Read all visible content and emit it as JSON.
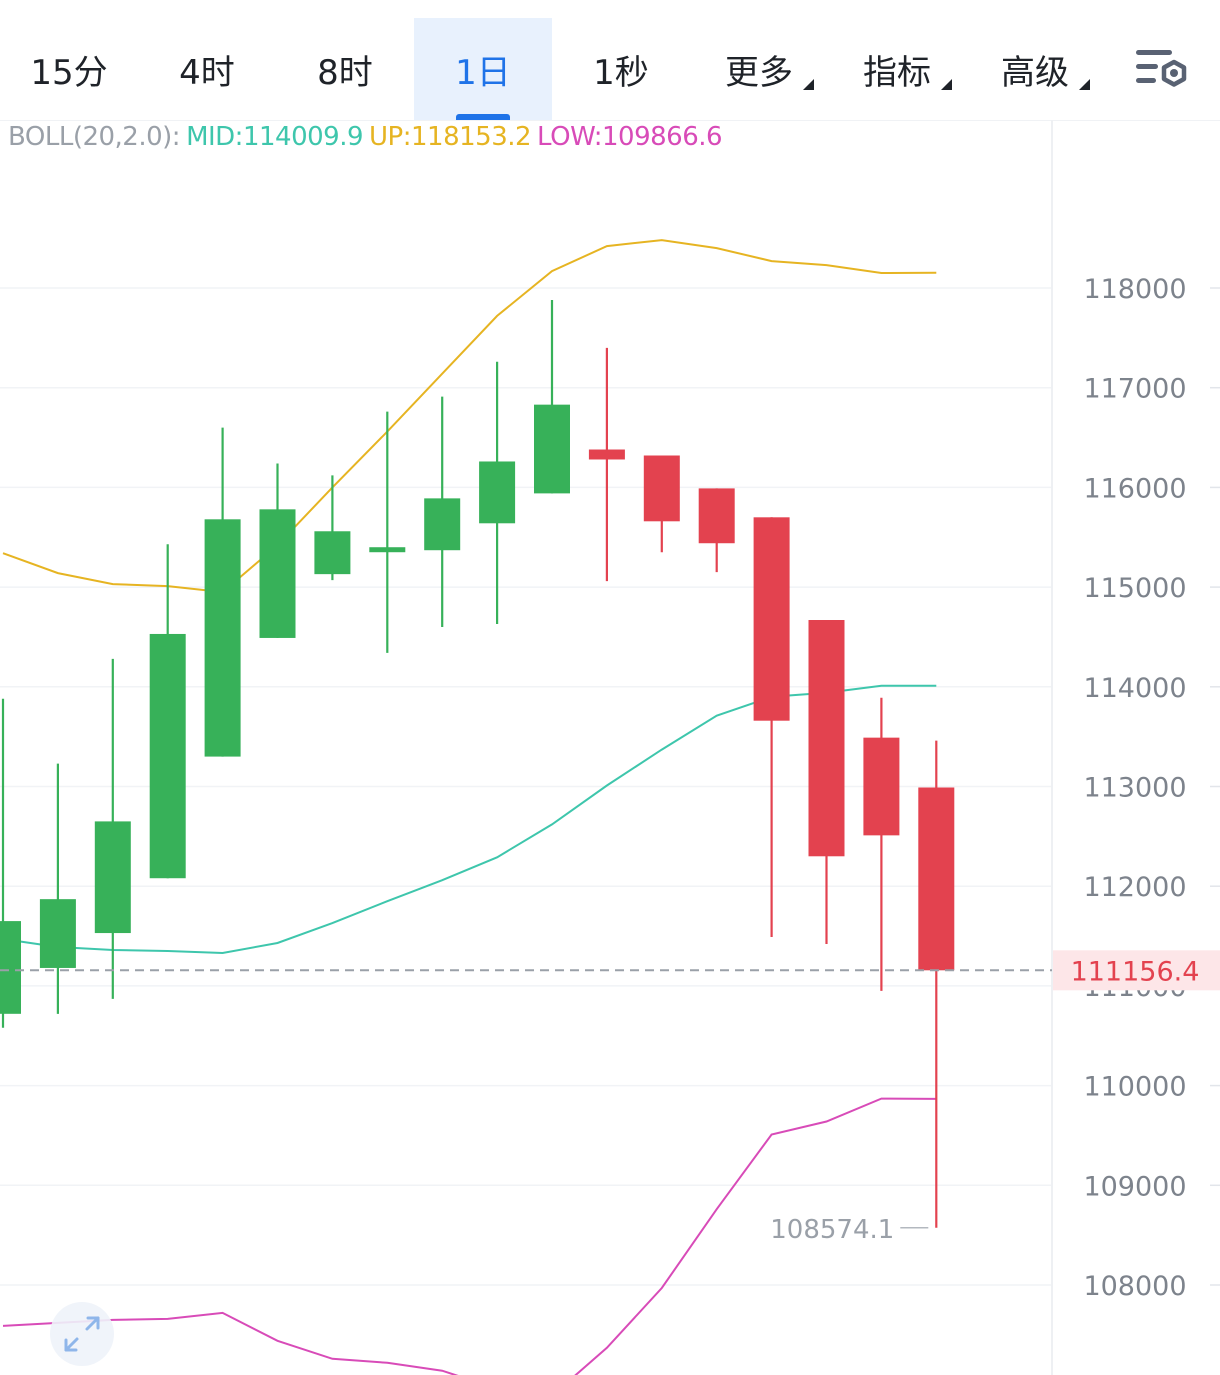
{
  "tabs": [
    {
      "label": "15分",
      "active": false,
      "dropdown": false
    },
    {
      "label": "4时",
      "active": false,
      "dropdown": false
    },
    {
      "label": "8时",
      "active": false,
      "dropdown": false
    },
    {
      "label": "1日",
      "active": true,
      "dropdown": false
    },
    {
      "label": "1秒",
      "active": false,
      "dropdown": false
    },
    {
      "label": "更多",
      "active": false,
      "dropdown": true
    },
    {
      "label": "指标",
      "active": false,
      "dropdown": true
    },
    {
      "label": "高级",
      "active": false,
      "dropdown": true
    }
  ],
  "icons": {
    "settings": "chart-settings-icon",
    "fullscreen": "expand-arrows-icon"
  },
  "legend": {
    "name": "BOLL(20,2.0):",
    "mid": "MID:114009.9",
    "up": "UP:118153.2",
    "low": "LOW:109866.6"
  },
  "colors": {
    "up": "#37b159",
    "down": "#e3424f",
    "mid": "#3ec6ac",
    "upper": "#e6b422",
    "lower": "#d84bb8",
    "accent": "#1f73e8",
    "price_label": "#e3424f"
  },
  "chart_data": {
    "type": "candlestick",
    "title": "",
    "y_axis": {
      "ticks": [
        118000,
        117000,
        116000,
        115000,
        114000,
        113000,
        112000,
        111000,
        110000,
        109000,
        108000
      ],
      "range": [
        107000,
        119700
      ],
      "position": "right"
    },
    "last_price": 111156.4,
    "high_marker": 117875.2,
    "low_marker": 108574.1,
    "candles": [
      {
        "open": 110720,
        "close": 111650,
        "high": 113880,
        "low": 110580
      },
      {
        "open": 111180,
        "close": 111870,
        "high": 113230,
        "low": 110720
      },
      {
        "open": 111530,
        "close": 112650,
        "high": 114280,
        "low": 110870
      },
      {
        "open": 112080,
        "close": 114530,
        "high": 115430,
        "low": 112080
      },
      {
        "open": 113300,
        "close": 115680,
        "high": 116600,
        "low": 113300
      },
      {
        "open": 114490,
        "close": 115780,
        "high": 116240,
        "low": 114490
      },
      {
        "open": 115130,
        "close": 115560,
        "high": 116120,
        "low": 115070
      },
      {
        "open": 115360,
        "close": 115400,
        "high": 116760,
        "low": 114340
      },
      {
        "open": 115370,
        "close": 115890,
        "high": 116910,
        "low": 114600
      },
      {
        "open": 115640,
        "close": 116260,
        "high": 117260,
        "low": 114630
      },
      {
        "open": 115940,
        "close": 116830,
        "high": 117880,
        "low": 115940
      },
      {
        "open": 116380,
        "close": 116280,
        "high": 117400,
        "low": 115060
      },
      {
        "open": 116320,
        "close": 115660,
        "high": 116320,
        "low": 115350
      },
      {
        "open": 115990,
        "close": 115440,
        "high": 115990,
        "low": 115150
      },
      {
        "open": 115700,
        "close": 113660,
        "high": 115700,
        "low": 111490
      },
      {
        "open": 114670,
        "close": 112300,
        "high": 114670,
        "low": 111420
      },
      {
        "open": 113490,
        "close": 112510,
        "high": 113890,
        "low": 110950
      },
      {
        "open": 112990,
        "close": 111156.4,
        "high": 113460,
        "low": 108574.1
      }
    ],
    "bollinger": {
      "upper": [
        115340,
        115140,
        115030,
        115010,
        114950,
        115420,
        116000,
        116560,
        117140,
        117720,
        118170,
        118420,
        118480,
        118400,
        118270,
        118230,
        118150,
        118153.2
      ],
      "mid": [
        111470,
        111390,
        111360,
        111350,
        111330,
        111430,
        111630,
        111850,
        112060,
        112290,
        112620,
        113010,
        113370,
        113710,
        113900,
        113940,
        114010,
        114009.9
      ],
      "lower": [
        107590,
        107620,
        107650,
        107660,
        107720,
        107440,
        107260,
        107220,
        107140,
        106960,
        106890,
        107370,
        107970,
        108760,
        109510,
        109640,
        109870,
        109866.6
      ]
    }
  }
}
